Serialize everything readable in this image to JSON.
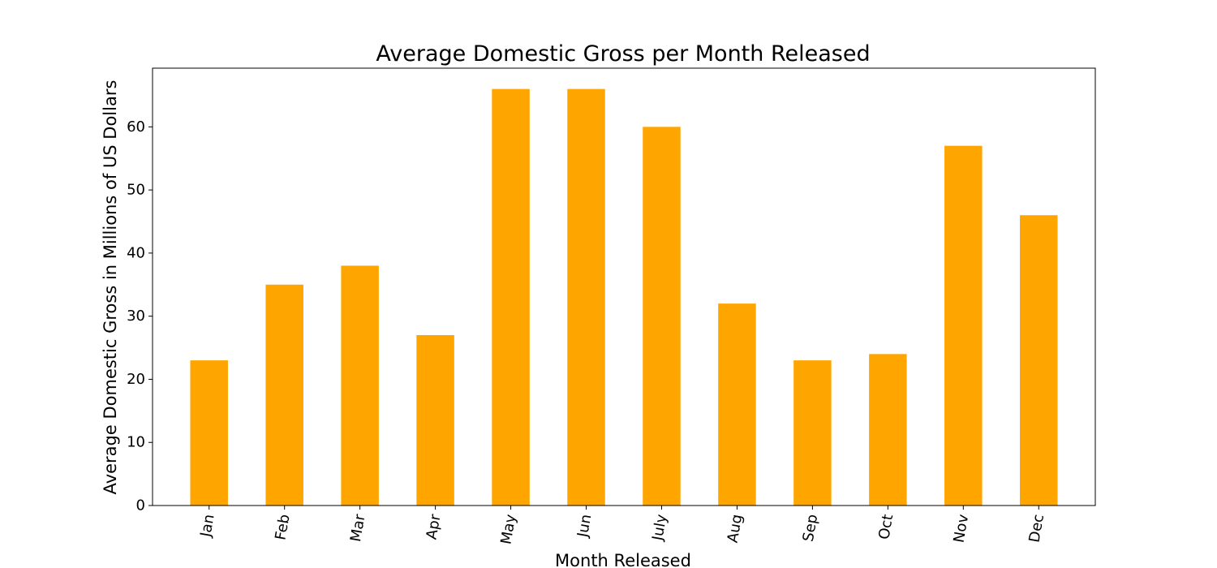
{
  "chart_data": {
    "type": "bar",
    "title": "Average Domestic Gross per Month Released",
    "xlabel": "Month Released",
    "ylabel": "Average Domestic Gross in Millions of US Dollars",
    "categories": [
      "Jan",
      "Feb",
      "Mar",
      "Apr",
      "May",
      "Jun",
      "July",
      "Aug",
      "Sep",
      "Oct",
      "Nov",
      "Dec"
    ],
    "values": [
      23,
      35,
      38,
      27,
      66,
      66,
      60,
      32,
      23,
      24,
      57,
      46
    ],
    "ylim": [
      0,
      69.3
    ],
    "yticks": [
      0,
      10,
      20,
      30,
      40,
      50,
      60
    ],
    "bar_color": "#FFA500",
    "grid": false,
    "legend": "none"
  }
}
